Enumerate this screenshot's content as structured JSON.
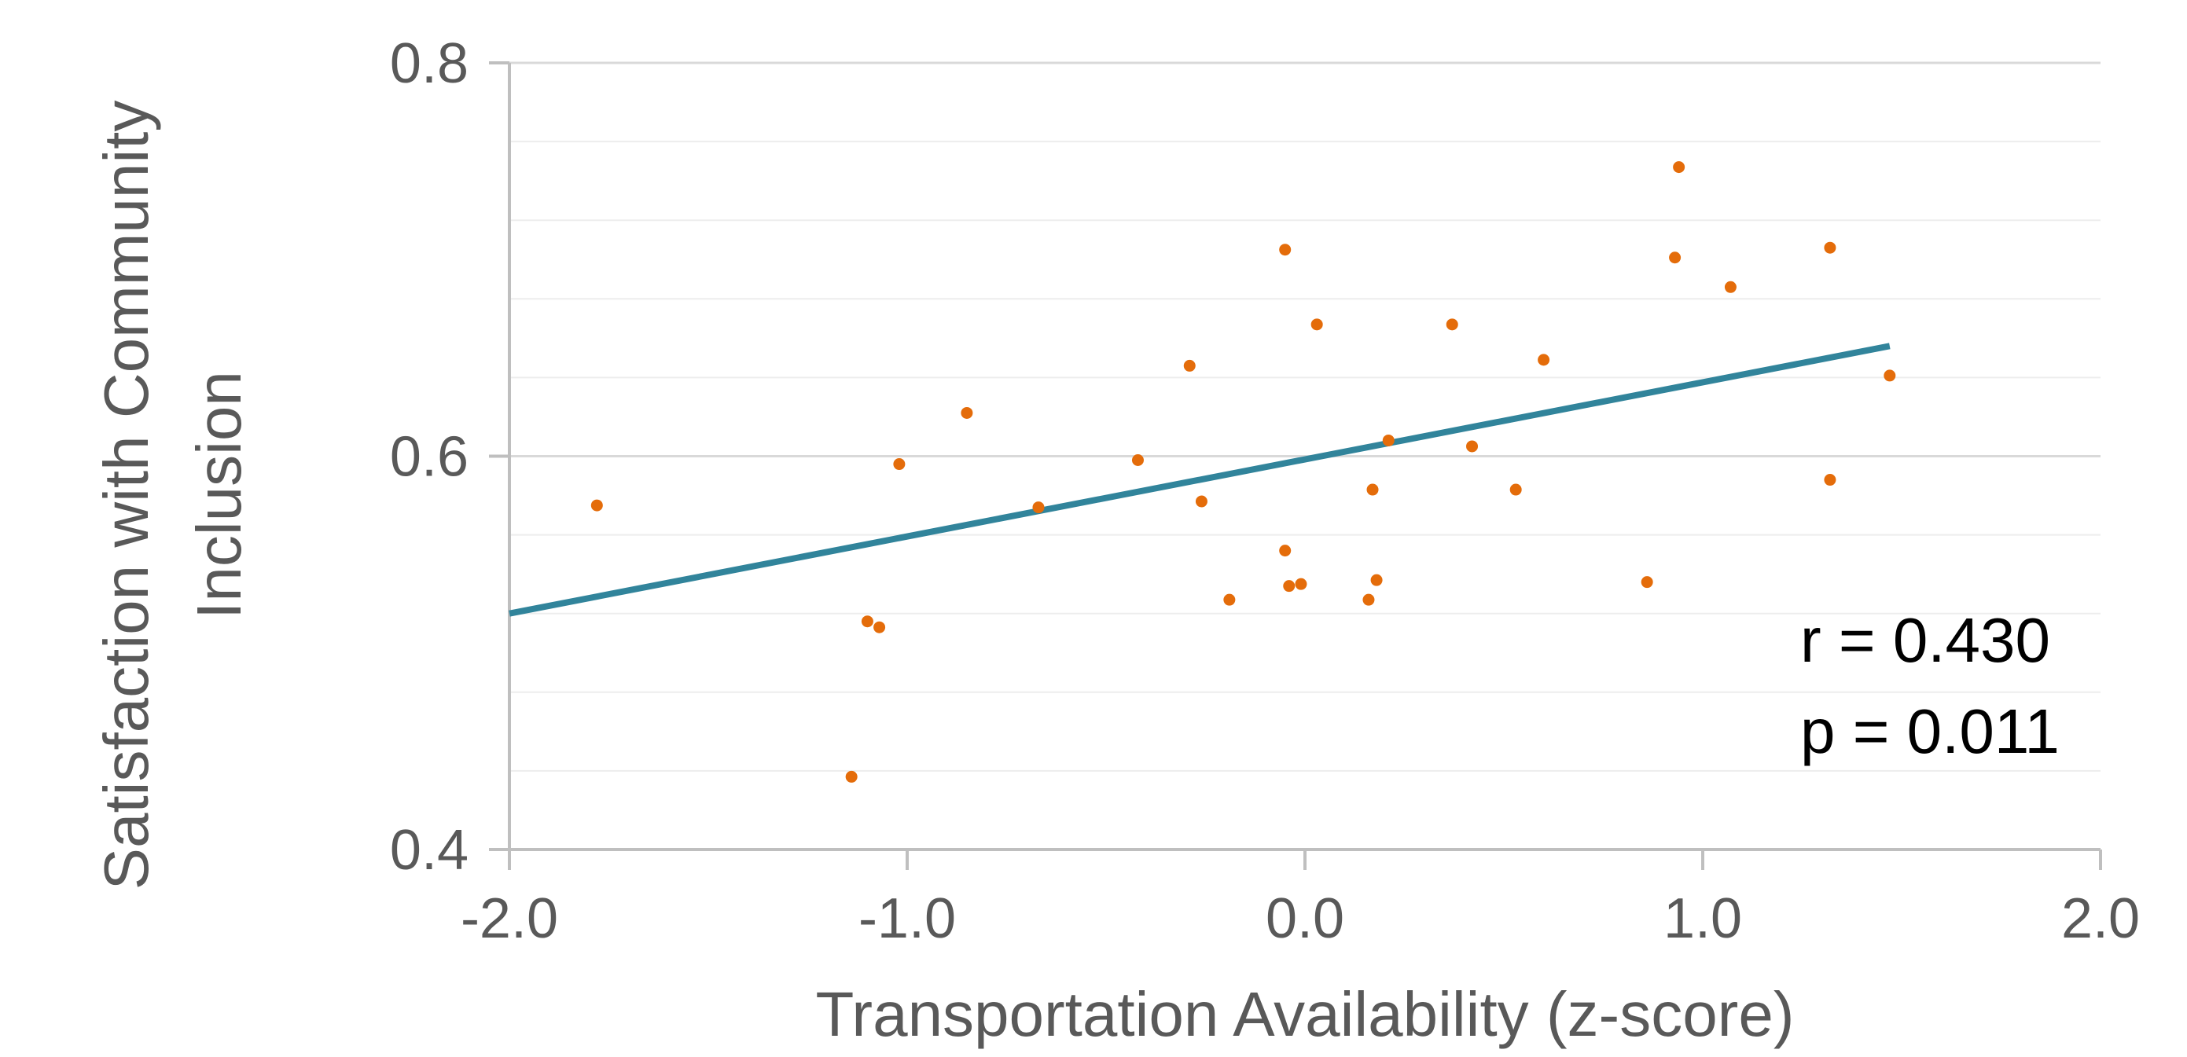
{
  "chart_data": {
    "type": "scatter",
    "title": "",
    "xlabel": "Transportation Availability (z-score)",
    "ylabel_lines": [
      "Satisfaction with Community",
      "Inclusion"
    ],
    "xlim": [
      -2.0,
      2.0
    ],
    "ylim": [
      0.4,
      0.8
    ],
    "x_ticks": [
      -2.0,
      -1.0,
      0.0,
      1.0,
      2.0
    ],
    "x_tick_labels": [
      "-2.0",
      "-1.0",
      "0.0",
      "1.0",
      "2.0"
    ],
    "y_ticks": [
      0.4,
      0.6,
      0.8
    ],
    "y_tick_labels": [
      "0.4",
      "0.6",
      "0.8"
    ],
    "y_minor_gridlines": [
      0.44,
      0.48,
      0.52,
      0.56,
      0.64,
      0.68,
      0.72,
      0.76
    ],
    "grid": true,
    "points": [
      {
        "x": -1.78,
        "y": 0.575
      },
      {
        "x": -1.14,
        "y": 0.437
      },
      {
        "x": -1.1,
        "y": 0.516
      },
      {
        "x": -1.07,
        "y": 0.513
      },
      {
        "x": -1.02,
        "y": 0.596
      },
      {
        "x": -0.85,
        "y": 0.622
      },
      {
        "x": -0.67,
        "y": 0.574
      },
      {
        "x": -0.42,
        "y": 0.598
      },
      {
        "x": -0.29,
        "y": 0.646
      },
      {
        "x": -0.26,
        "y": 0.577
      },
      {
        "x": -0.19,
        "y": 0.527
      },
      {
        "x": -0.05,
        "y": 0.705
      },
      {
        "x": -0.05,
        "y": 0.552
      },
      {
        "x": -0.04,
        "y": 0.534
      },
      {
        "x": -0.01,
        "y": 0.535
      },
      {
        "x": 0.03,
        "y": 0.667
      },
      {
        "x": 0.16,
        "y": 0.527
      },
      {
        "x": 0.17,
        "y": 0.583
      },
      {
        "x": 0.18,
        "y": 0.537
      },
      {
        "x": 0.21,
        "y": 0.608
      },
      {
        "x": 0.37,
        "y": 0.667
      },
      {
        "x": 0.42,
        "y": 0.605
      },
      {
        "x": 0.53,
        "y": 0.583
      },
      {
        "x": 0.6,
        "y": 0.649
      },
      {
        "x": 0.86,
        "y": 0.536
      },
      {
        "x": 0.93,
        "y": 0.701
      },
      {
        "x": 0.94,
        "y": 0.747
      },
      {
        "x": 1.07,
        "y": 0.686
      },
      {
        "x": 1.32,
        "y": 0.706
      },
      {
        "x": 1.32,
        "y": 0.588
      },
      {
        "x": 1.47,
        "y": 0.641
      }
    ],
    "trendline": {
      "x": [
        -2.0,
        1.47
      ],
      "y": [
        0.52,
        0.656
      ]
    },
    "colors": {
      "points": "#E46C0A",
      "trendline": "#31849B",
      "axis": "#BFBFBF",
      "grid_major": "#D9D9D9",
      "grid_minor": "#EDEDED",
      "text": "#595959"
    },
    "annotations": [
      "r = 0.430",
      "p = 0.011"
    ]
  }
}
